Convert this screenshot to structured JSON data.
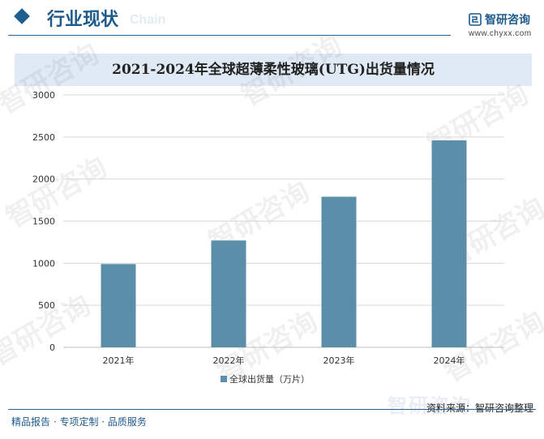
{
  "header": {
    "section_title": "行业现状",
    "ghost_text": "Chain"
  },
  "brand": {
    "name": "智研咨询",
    "url": "www.chyxx.com"
  },
  "watermark": {
    "text": "智研咨询"
  },
  "footer": {
    "left": "精品报告 · 专项定制 · 品质服务",
    "source": "资料来源：智研咨询整理",
    "wm_text": "智研咨询"
  },
  "colors": {
    "bar": "#5b8ea8",
    "grid": "#d9d9d9",
    "accent": "#1d5a8c"
  },
  "chart_data": {
    "type": "bar",
    "title": "2021-2024年全球超薄柔性玻璃(UTG)出货量情况",
    "categories": [
      "2021年",
      "2022年",
      "2023年",
      "2024年"
    ],
    "series": [
      {
        "name": "全球出货量（万片）",
        "values": [
          990,
          1270,
          1790,
          2460
        ]
      }
    ],
    "ylim": [
      0,
      3000
    ],
    "yticks": [
      0,
      500,
      1000,
      1500,
      2000,
      2500,
      3000
    ],
    "xlabel": "",
    "ylabel": "",
    "grid": true,
    "legend": "bottom"
  }
}
